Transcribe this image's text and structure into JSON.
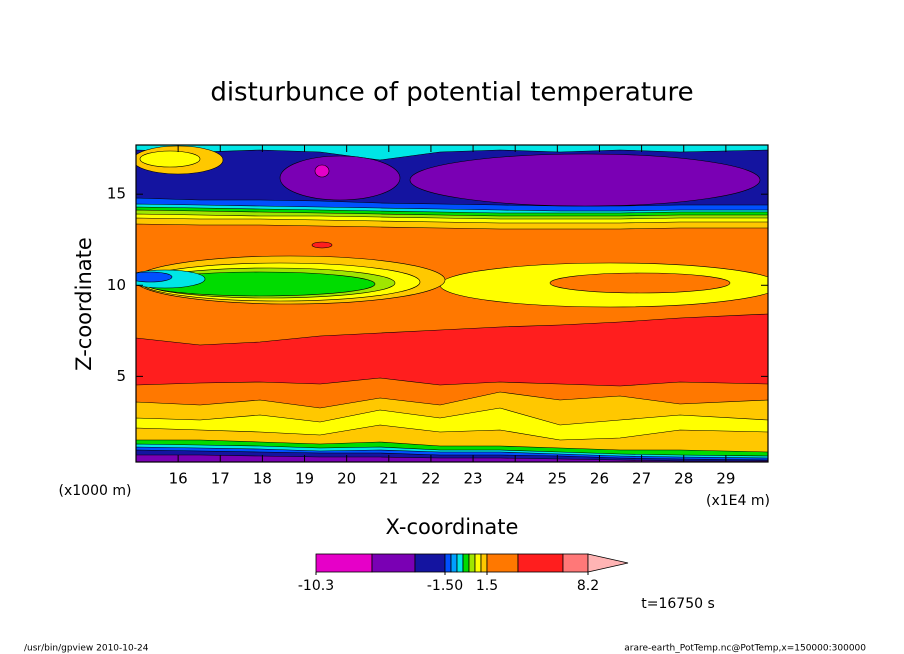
{
  "chart_data": {
    "type": "contour",
    "title": "disturbunce of potential temperature",
    "x_label": "X-coordinate",
    "y_label": "Z-coordinate",
    "x_unit": "(x1E4 m)",
    "y_unit": "(x1000 m)",
    "xlim": [
      15,
      30
    ],
    "xticks": [
      16,
      17,
      18,
      19,
      20,
      21,
      22,
      23,
      24,
      25,
      26,
      27,
      28,
      29
    ],
    "ylim": [
      0.3,
      17.7
    ],
    "yticks": [
      5,
      10,
      15
    ],
    "colorbar": {
      "boundaries": [
        -10.3,
        null,
        null,
        {
          "value": -1.5,
          "label": "-1.50"
        },
        null,
        null,
        null,
        null,
        null,
        null,
        1.5,
        null,
        null,
        8.2
      ],
      "colors": [
        "#e600c8",
        "#7a00b4",
        "#1414a0",
        "#0050ff",
        "#00a0ff",
        "#00e6e6",
        "#00dc00",
        "#a0e600",
        "#ffff00",
        "#ffc800",
        "#ff7800",
        "#ff1e1e",
        "#ff7878",
        "#ffb4b4"
      ]
    },
    "time_label": "t=16750 s"
  },
  "footer": {
    "left": "/usr/bin/gpview   2010-10-24",
    "right": "arare-earth_PotTemp.nc@PotTemp,x=150000:300000"
  }
}
